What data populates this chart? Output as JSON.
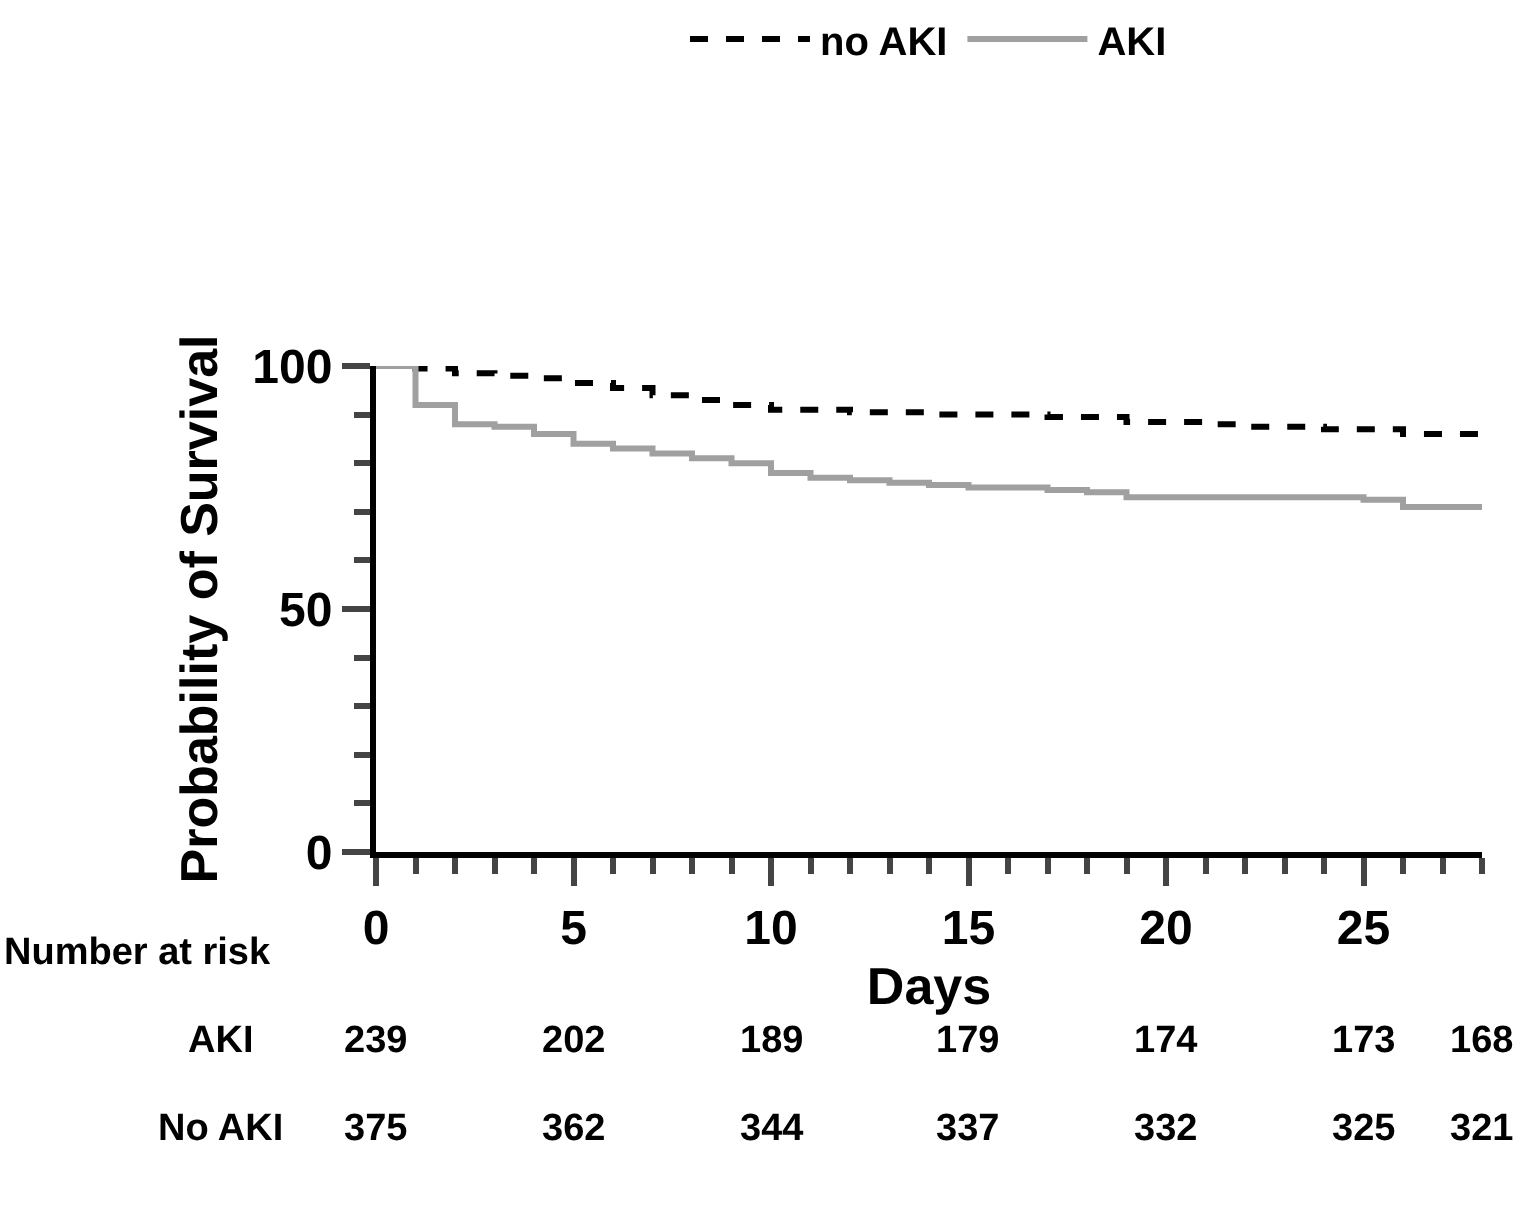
{
  "chart_data": {
    "type": "step",
    "xlabel": "Days",
    "ylabel": "Probability of Survival",
    "legend": "top",
    "xlim": [
      0,
      28
    ],
    "ylim": [
      0,
      100
    ],
    "xticks": [
      0,
      {
        "value": 1,
        "label": null
      },
      {
        "value": 2,
        "label": null
      },
      {
        "value": 3,
        "label": null
      },
      {
        "value": 4,
        "label": null
      },
      5,
      {
        "value": 6,
        "label": null
      },
      {
        "value": 7,
        "label": null
      },
      {
        "value": 8,
        "label": null
      },
      {
        "value": 9,
        "label": null
      },
      10,
      {
        "value": 11,
        "label": null
      },
      {
        "value": 12,
        "label": null
      },
      {
        "value": 13,
        "label": null
      },
      {
        "value": 14,
        "label": null
      },
      15,
      {
        "value": 16,
        "label": null
      },
      {
        "value": 17,
        "label": null
      },
      {
        "value": 18,
        "label": null
      },
      {
        "value": 19,
        "label": null
      },
      20,
      {
        "value": 21,
        "label": null
      },
      {
        "value": 22,
        "label": null
      },
      {
        "value": 23,
        "label": null
      },
      {
        "value": 24,
        "label": null
      },
      25,
      {
        "value": 26,
        "label": null
      },
      {
        "value": 27,
        "label": null
      },
      {
        "value": 28,
        "label": null
      }
    ],
    "yticks": [
      0,
      {
        "value": 10,
        "label": null
      },
      {
        "value": 20,
        "label": null
      },
      {
        "value": 30,
        "label": null
      },
      {
        "value": 40,
        "label": null
      },
      50,
      {
        "value": 60,
        "label": null
      },
      {
        "value": 70,
        "label": null
      },
      {
        "value": 80,
        "label": null
      },
      {
        "value": 90,
        "label": null
      },
      100
    ],
    "marker": "none",
    "series": [
      {
        "name": "no AKI",
        "color": "#000000",
        "line_style": "dashed",
        "x": [
          0,
          1,
          2,
          3,
          4,
          5,
          6,
          7,
          8,
          9,
          10,
          12,
          14,
          17,
          19,
          21,
          22,
          24,
          26,
          28
        ],
        "values": [
          100,
          99.5,
          98.5,
          98,
          97.5,
          96.5,
          95.5,
          94,
          93,
          92,
          91,
          90.5,
          90,
          89.5,
          88.5,
          88,
          87.5,
          87,
          86,
          86
        ]
      },
      {
        "name": "AKI",
        "color": "#a0a0a0",
        "line_style": "solid",
        "x": [
          0,
          1,
          2,
          3,
          4,
          5,
          6,
          7,
          8,
          9,
          10,
          11,
          12,
          13,
          14,
          15,
          17,
          18,
          19,
          23,
          25,
          26,
          28
        ],
        "values": [
          100,
          92,
          88,
          87.5,
          86,
          84,
          83,
          82,
          81,
          80,
          78,
          77,
          76.5,
          76,
          75.5,
          75,
          74.5,
          74,
          73,
          73,
          72.5,
          71,
          71
        ]
      }
    ],
    "annotations": [
      "Number at risk",
      "AKI",
      "239",
      "202",
      "189",
      "179",
      "174",
      "173",
      "168",
      "No AKI",
      "375",
      "362",
      "344",
      "337",
      "332",
      "325",
      "321"
    ]
  }
}
